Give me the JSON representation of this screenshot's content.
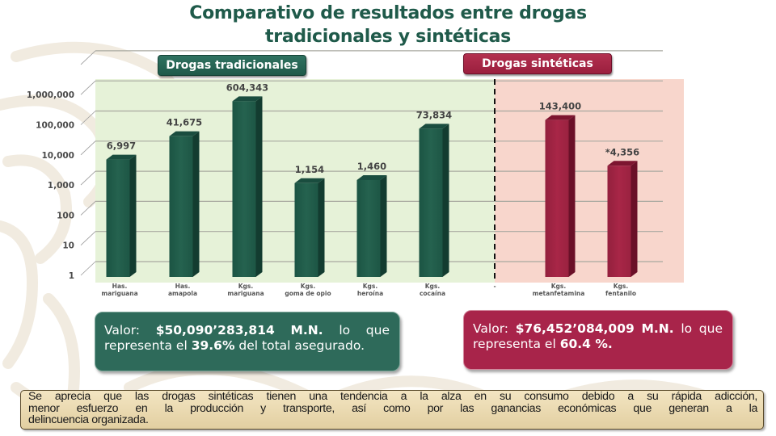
{
  "title": {
    "line1": "Comparativo de resultados entre drogas",
    "line2": "tradicionales y sintéticas"
  },
  "colors": {
    "title": "#1f5a4a",
    "traditional": "#1f5a4a",
    "synthetic": "#9b1f3e",
    "traditional_bg": "#e6f2d8",
    "synthetic_bg": "#f8d6cc"
  },
  "sections": {
    "traditional_label": "Drogas tradicionales",
    "synthetic_label": "Drogas sintéticas"
  },
  "chart_data": {
    "type": "bar",
    "title": "Comparativo de resultados entre drogas tradicionales y sintéticas",
    "xlabel": "",
    "ylabel": "",
    "yscale": "log",
    "ylim": [
      1,
      1000000
    ],
    "grid": true,
    "y_ticks": [
      "1",
      "10",
      "100",
      "1,000",
      "10,000",
      "100,000",
      "1,000,000"
    ],
    "y_tick_values": [
      1,
      10,
      100,
      1000,
      10000,
      100000,
      1000000
    ],
    "categories": [
      {
        "unit": "Has.",
        "name": "mariguana",
        "group": "traditional"
      },
      {
        "unit": "Has.",
        "name": "amapola",
        "group": "traditional"
      },
      {
        "unit": "Kgs.",
        "name": "mariguana",
        "group": "traditional"
      },
      {
        "unit": "Kgs.",
        "name": "goma de opio",
        "group": "traditional"
      },
      {
        "unit": "Kgs.",
        "name": "heroína",
        "group": "traditional"
      },
      {
        "unit": "Kgs.",
        "name": "cocaína",
        "group": "traditional"
      },
      {
        "unit": "-",
        "name": "",
        "group": "separator"
      },
      {
        "unit": "Kgs.",
        "name": "metanfetamina",
        "group": "synthetic"
      },
      {
        "unit": "Kgs.",
        "name": "fentanilo",
        "group": "synthetic"
      }
    ],
    "series": [
      {
        "name": "Drogas tradicionales",
        "values": [
          6997,
          41675,
          604343,
          1154,
          1460,
          73834
        ],
        "labels": [
          "6,997",
          "41,675",
          "604,343",
          "1,154",
          "1,460",
          "73,834"
        ]
      },
      {
        "name": "Drogas sintéticas",
        "values": [
          143400,
          4356
        ],
        "labels": [
          "143,400",
          "*4,356"
        ]
      }
    ]
  },
  "summary": {
    "traditional": {
      "prefix": "Valor:",
      "amount": "$50,090’283,814",
      "currency": "M.N.",
      "word1": "lo",
      "word2": "que",
      "line2_prefix": "representa el",
      "percent": "39.6%",
      "line2_suffix": "del total asegurado."
    },
    "synthetic": {
      "prefix": "Valor:",
      "amount": "$76,452’084,009",
      "currency": "M.N.",
      "word1": "lo",
      "word2": "que",
      "line2_prefix": "representa el",
      "percent": "60.4 %."
    }
  },
  "note": {
    "line1": "Se aprecia que las drogas sintéticas tienen una tendencia a la alza en su consumo debido a su rápida adicción,",
    "line2": "menor esfuerzo en la producción y transporte, así como por las ganancias económicas que generan a la",
    "line3": "delincuencia organizada."
  }
}
